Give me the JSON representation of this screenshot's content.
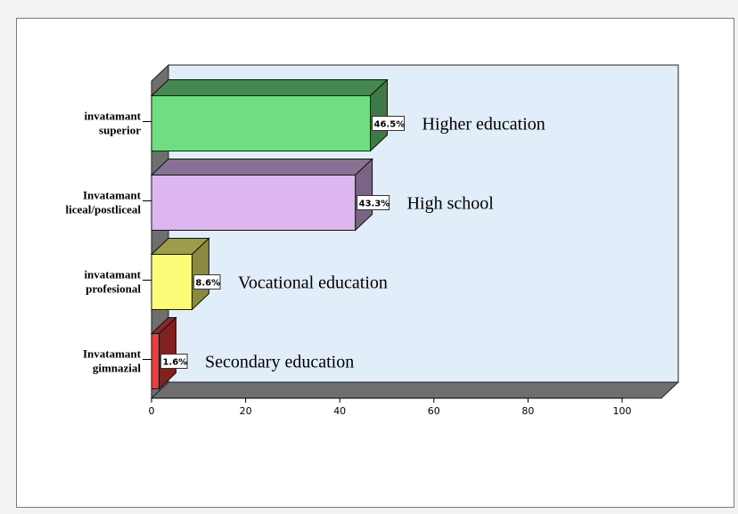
{
  "chart_data": {
    "type": "bar",
    "orientation": "horizontal",
    "three_d": true,
    "categories": [
      [
        "invatamant",
        "superior"
      ],
      [
        "Invatamant",
        "liceal/postliceal"
      ],
      [
        "invatamant",
        "profesional"
      ],
      [
        "Invatamant",
        "gimnazial"
      ]
    ],
    "values": [
      46.5,
      43.3,
      8.6,
      1.6
    ],
    "data_labels": [
      "46.5%",
      "43.3%",
      "8.6%",
      "1.6%"
    ],
    "annotations": [
      "Higher education",
      "High school",
      "Vocational education",
      "Secondary education"
    ],
    "colors": [
      "#6fdd82",
      "#ddb6f0",
      "#fbfb77",
      "#ee3b3b"
    ],
    "xlim": [
      0,
      100
    ],
    "xticks": [
      0,
      20,
      40,
      60,
      80,
      100
    ],
    "title": "",
    "xlabel": "",
    "ylabel": "",
    "grid": false,
    "wall_color": "#e1edf9",
    "floor_color": "#6e6e6e"
  }
}
